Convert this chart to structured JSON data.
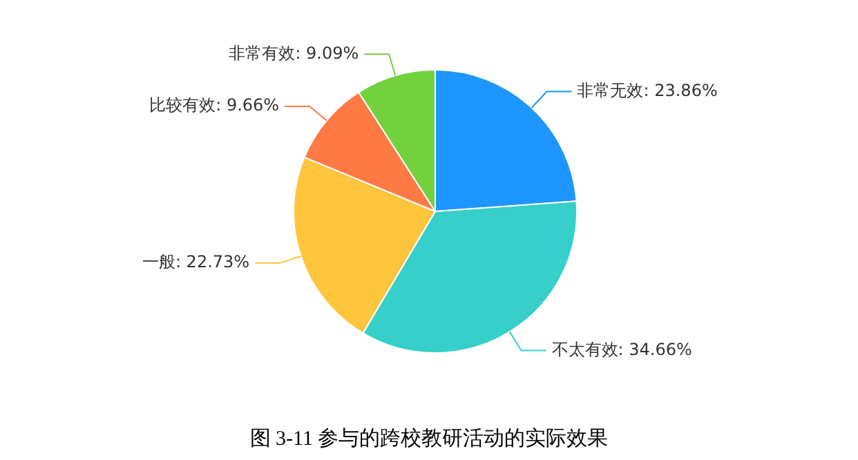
{
  "chart_data": {
    "type": "pie",
    "title": "图 3-11  参与的跨校教研活动的实际效果",
    "categories": [
      "非常无效",
      "不太有效",
      "一般",
      "比较有效",
      "非常有效"
    ],
    "values": [
      23.86,
      34.66,
      22.73,
      9.66,
      9.09
    ],
    "colors": [
      "#1e96ff",
      "#36cfc9",
      "#ffc53d",
      "#ff7a45",
      "#73d13d"
    ],
    "value_labels": [
      "23.86%",
      "34.66%",
      "22.73%",
      "9.66%",
      "9.09%"
    ],
    "legend": false
  }
}
